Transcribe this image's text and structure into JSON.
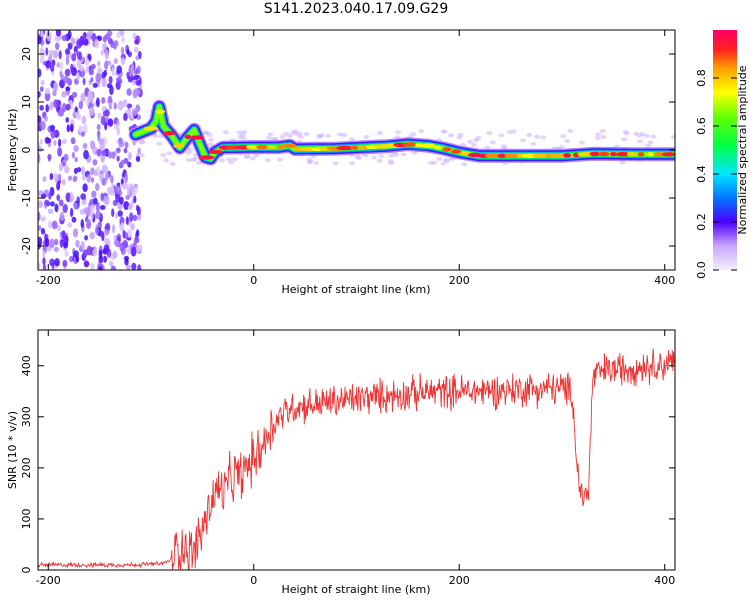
{
  "figure_title": "S141.2023.040.17.09.G29",
  "chart_data": [
    {
      "type": "heatmap",
      "title": "",
      "xlabel": "Height of straight line (km)",
      "ylabel": "Frequency (Hz)",
      "xlim": [
        -210,
        410
      ],
      "ylim": [
        -25,
        25
      ],
      "xticks": [
        -200,
        0,
        200,
        400
      ],
      "yticks": [
        -20,
        -10,
        0,
        10,
        20
      ],
      "colorbar": {
        "label": "Normalized spectral amplitude",
        "ticks": [
          0.0,
          0.2,
          0.4,
          0.6,
          0.8
        ],
        "range": [
          0,
          1
        ]
      },
      "noise_region_x": [
        -210,
        -110
      ],
      "ridge": [
        [
          -115,
          3.2
        ],
        [
          -100,
          4.5
        ],
        [
          -95,
          6.0
        ],
        [
          -92,
          9.0
        ],
        [
          -88,
          5.0
        ],
        [
          -80,
          3.0
        ],
        [
          -72,
          0.5
        ],
        [
          -65,
          2.5
        ],
        [
          -58,
          4.2
        ],
        [
          -52,
          1.0
        ],
        [
          -47,
          -1.5
        ],
        [
          -42,
          -1.8
        ],
        [
          -38,
          -0.5
        ],
        [
          -30,
          0.5
        ],
        [
          0,
          0.6
        ],
        [
          25,
          0.6
        ],
        [
          35,
          0.9
        ],
        [
          40,
          0.2
        ],
        [
          80,
          0.3
        ],
        [
          100,
          0.5
        ],
        [
          130,
          0.8
        ],
        [
          150,
          1.2
        ],
        [
          170,
          0.9
        ],
        [
          185,
          0.3
        ],
        [
          200,
          -0.5
        ],
        [
          220,
          -1.2
        ],
        [
          260,
          -1.2
        ],
        [
          300,
          -1.2
        ],
        [
          330,
          -0.8
        ],
        [
          370,
          -0.9
        ],
        [
          410,
          -0.9
        ]
      ],
      "legend": "none"
    },
    {
      "type": "line",
      "title": "",
      "xlabel": "Height of straight line (km)",
      "ylabel": "SNR (10 * v/v)",
      "xlim": [
        -210,
        410
      ],
      "ylim": [
        0,
        470
      ],
      "xticks": [
        -200,
        0,
        200,
        400
      ],
      "yticks": [
        0,
        100,
        200,
        300,
        400
      ],
      "series": [
        {
          "color": "#ee3333",
          "points": [
            [
              -210,
              10
            ],
            [
              -180,
              10
            ],
            [
              -150,
              10
            ],
            [
              -120,
              10
            ],
            [
              -90,
              12
            ],
            [
              -80,
              20
            ],
            [
              -75,
              40
            ],
            [
              -70,
              50
            ],
            [
              -60,
              30
            ],
            [
              -50,
              80
            ],
            [
              -45,
              110
            ],
            [
              -40,
              140
            ],
            [
              -35,
              160
            ],
            [
              -30,
              150
            ],
            [
              -25,
              170
            ],
            [
              -20,
              180
            ],
            [
              -10,
              190
            ],
            [
              0,
              220
            ],
            [
              10,
              250
            ],
            [
              20,
              290
            ],
            [
              30,
              310
            ],
            [
              40,
              320
            ],
            [
              60,
              325
            ],
            [
              80,
              330
            ],
            [
              100,
              335
            ],
            [
              120,
              340
            ],
            [
              150,
              345
            ],
            [
              180,
              350
            ],
            [
              210,
              350
            ],
            [
              240,
              352
            ],
            [
              270,
              355
            ],
            [
              300,
              355
            ],
            [
              310,
              350
            ],
            [
              314,
              220
            ],
            [
              318,
              150
            ],
            [
              322,
              145
            ],
            [
              326,
              155
            ],
            [
              330,
              380
            ],
            [
              340,
              390
            ],
            [
              360,
              395
            ],
            [
              380,
              400
            ],
            [
              410,
              405
            ]
          ]
        }
      ],
      "legend": "none"
    }
  ]
}
